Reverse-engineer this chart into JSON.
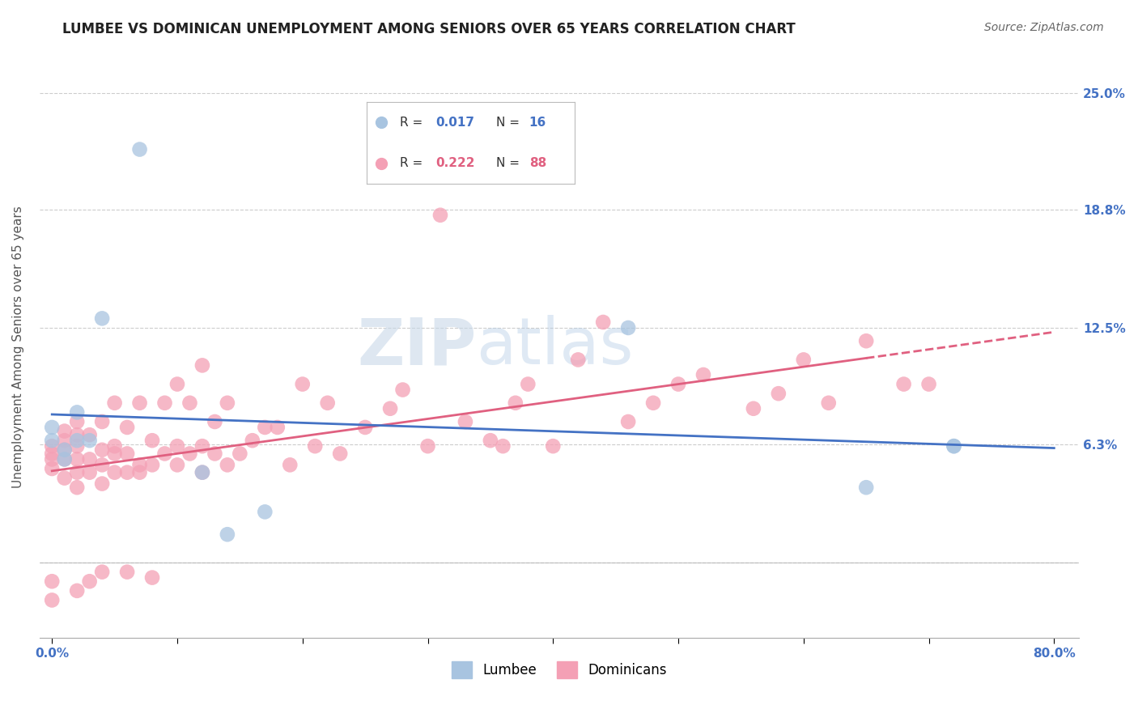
{
  "title": "LUMBEE VS DOMINICAN UNEMPLOYMENT AMONG SENIORS OVER 65 YEARS CORRELATION CHART",
  "source": "Source: ZipAtlas.com",
  "ylabel": "Unemployment Among Seniors over 65 years",
  "xlim": [
    -0.01,
    0.82
  ],
  "ylim": [
    -0.04,
    0.27
  ],
  "xticks": [
    0.0,
    0.1,
    0.2,
    0.3,
    0.4,
    0.5,
    0.6,
    0.7,
    0.8
  ],
  "ytick_values": [
    0.0,
    0.063,
    0.125,
    0.188,
    0.25
  ],
  "ytick_labels": [
    "",
    "6.3%",
    "12.5%",
    "18.8%",
    "25.0%"
  ],
  "lumbee_R": 0.017,
  "lumbee_N": 16,
  "dominican_R": 0.222,
  "dominican_N": 88,
  "lumbee_color": "#a8c4e0",
  "dominican_color": "#f4a0b5",
  "lumbee_line_color": "#4472c4",
  "dominican_line_color": "#e06080",
  "lumbee_x": [
    0.0,
    0.0,
    0.01,
    0.01,
    0.02,
    0.02,
    0.03,
    0.04,
    0.07,
    0.12,
    0.14,
    0.17,
    0.46,
    0.65,
    0.72,
    0.72
  ],
  "lumbee_y": [
    0.065,
    0.072,
    0.06,
    0.055,
    0.065,
    0.08,
    0.065,
    0.13,
    0.22,
    0.048,
    0.015,
    0.027,
    0.125,
    0.04,
    0.062,
    0.062
  ],
  "dominican_x": [
    0.0,
    0.0,
    0.0,
    0.0,
    0.0,
    0.0,
    0.01,
    0.01,
    0.01,
    0.01,
    0.01,
    0.02,
    0.02,
    0.02,
    0.02,
    0.02,
    0.02,
    0.02,
    0.03,
    0.03,
    0.03,
    0.03,
    0.04,
    0.04,
    0.04,
    0.04,
    0.04,
    0.05,
    0.05,
    0.05,
    0.05,
    0.06,
    0.06,
    0.06,
    0.06,
    0.07,
    0.07,
    0.07,
    0.08,
    0.08,
    0.08,
    0.09,
    0.09,
    0.1,
    0.1,
    0.1,
    0.11,
    0.11,
    0.12,
    0.12,
    0.12,
    0.13,
    0.13,
    0.14,
    0.14,
    0.15,
    0.16,
    0.17,
    0.18,
    0.19,
    0.2,
    0.21,
    0.22,
    0.23,
    0.25,
    0.27,
    0.28,
    0.3,
    0.31,
    0.33,
    0.35,
    0.36,
    0.37,
    0.38,
    0.4,
    0.42,
    0.44,
    0.46,
    0.48,
    0.5,
    0.52,
    0.56,
    0.58,
    0.6,
    0.62,
    0.65,
    0.68,
    0.7
  ],
  "dominican_y": [
    0.05,
    0.055,
    0.058,
    0.062,
    -0.01,
    -0.02,
    0.045,
    0.055,
    0.06,
    0.065,
    0.07,
    0.04,
    0.048,
    0.055,
    0.062,
    0.068,
    0.075,
    -0.015,
    0.048,
    0.055,
    0.068,
    -0.01,
    0.042,
    0.052,
    0.06,
    0.075,
    -0.005,
    0.048,
    0.058,
    0.062,
    0.085,
    0.048,
    0.058,
    0.072,
    -0.005,
    0.048,
    0.052,
    0.085,
    0.052,
    0.065,
    -0.008,
    0.058,
    0.085,
    0.052,
    0.062,
    0.095,
    0.058,
    0.085,
    0.048,
    0.062,
    0.105,
    0.058,
    0.075,
    0.052,
    0.085,
    0.058,
    0.065,
    0.072,
    0.072,
    0.052,
    0.095,
    0.062,
    0.085,
    0.058,
    0.072,
    0.082,
    0.092,
    0.062,
    0.185,
    0.075,
    0.065,
    0.062,
    0.085,
    0.095,
    0.062,
    0.108,
    0.128,
    0.075,
    0.085,
    0.095,
    0.1,
    0.082,
    0.09,
    0.108,
    0.085,
    0.118,
    0.095,
    0.095
  ],
  "background_color": "#ffffff",
  "title_color": "#222222",
  "axis_label_color": "#555555",
  "tick_color": "#4472c4",
  "grid_color": "#cccccc",
  "title_fontsize": 12,
  "ylabel_fontsize": 11,
  "tick_fontsize": 11
}
